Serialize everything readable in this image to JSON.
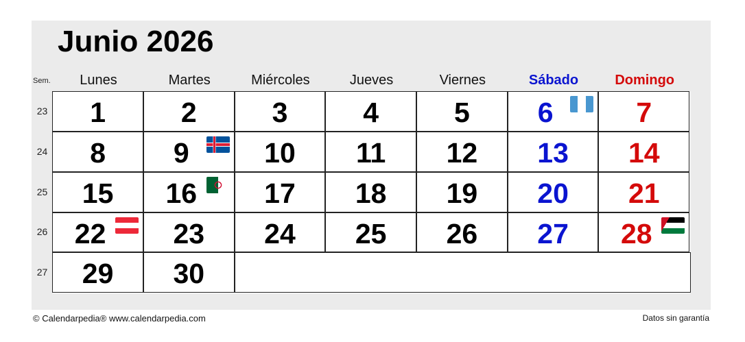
{
  "header": {
    "title": "Junio 2026",
    "week_label": "Sem."
  },
  "days": [
    "Lunes",
    "Martes",
    "Miércoles",
    "Jueves",
    "Viernes",
    "Sábado",
    "Domingo"
  ],
  "colors": {
    "saturday": "#0a14d0",
    "sunday": "#d40a0a",
    "weekday": "#000000"
  },
  "weeks": [
    "23",
    "24",
    "25",
    "26",
    "27"
  ],
  "dates": [
    {
      "d": "1",
      "w": 0,
      "c": 0
    },
    {
      "d": "2",
      "w": 0,
      "c": 1
    },
    {
      "d": "3",
      "w": 0,
      "c": 2
    },
    {
      "d": "4",
      "w": 0,
      "c": 3
    },
    {
      "d": "5",
      "w": 0,
      "c": 4
    },
    {
      "d": "6",
      "w": 0,
      "c": 5,
      "flag": "guatemala"
    },
    {
      "d": "7",
      "w": 0,
      "c": 6
    },
    {
      "d": "8",
      "w": 1,
      "c": 0
    },
    {
      "d": "9",
      "w": 1,
      "c": 1,
      "flag": "iceland"
    },
    {
      "d": "10",
      "w": 1,
      "c": 2
    },
    {
      "d": "11",
      "w": 1,
      "c": 3
    },
    {
      "d": "12",
      "w": 1,
      "c": 4
    },
    {
      "d": "13",
      "w": 1,
      "c": 5
    },
    {
      "d": "14",
      "w": 1,
      "c": 6
    },
    {
      "d": "15",
      "w": 2,
      "c": 0
    },
    {
      "d": "16",
      "w": 2,
      "c": 1,
      "flag": "algeria"
    },
    {
      "d": "17",
      "w": 2,
      "c": 2
    },
    {
      "d": "18",
      "w": 2,
      "c": 3
    },
    {
      "d": "19",
      "w": 2,
      "c": 4
    },
    {
      "d": "20",
      "w": 2,
      "c": 5
    },
    {
      "d": "21",
      "w": 2,
      "c": 6
    },
    {
      "d": "22",
      "w": 3,
      "c": 0,
      "flag": "austria"
    },
    {
      "d": "23",
      "w": 3,
      "c": 1
    },
    {
      "d": "24",
      "w": 3,
      "c": 2
    },
    {
      "d": "25",
      "w": 3,
      "c": 3
    },
    {
      "d": "26",
      "w": 3,
      "c": 4
    },
    {
      "d": "27",
      "w": 3,
      "c": 5
    },
    {
      "d": "28",
      "w": 3,
      "c": 6,
      "flag": "jordan"
    },
    {
      "d": "29",
      "w": 4,
      "c": 0
    },
    {
      "d": "30",
      "w": 4,
      "c": 1
    }
  ],
  "footer": {
    "copyright": "© Calendarpedia®   www.calendarpedia.com",
    "disclaimer": "Datos sin garantía"
  }
}
